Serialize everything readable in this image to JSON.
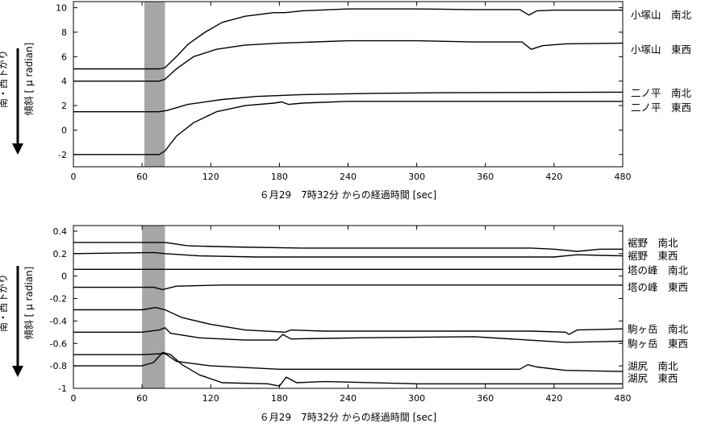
{
  "chart_data": [
    {
      "type": "line",
      "xlabel": "６月29　7時32分 からの経過時間 [sec]",
      "ylabel_direction": "南・西下がり",
      "ylabel": "傾斜 [ μ radian]",
      "xlim": [
        0,
        480
      ],
      "ylim": [
        -3,
        10.5
      ],
      "x_ticks": [
        0,
        60,
        120,
        180,
        240,
        300,
        360,
        420,
        480
      ],
      "y_ticks": [
        -2,
        0,
        2,
        4,
        6,
        8,
        10
      ],
      "shaded_span": [
        62,
        80
      ],
      "grid": false,
      "series": [
        {
          "name": "小塚山　南北",
          "points": [
            [
              0,
              5.0
            ],
            [
              75,
              5.0
            ],
            [
              80,
              5.1
            ],
            [
              90,
              6.0
            ],
            [
              100,
              7.0
            ],
            [
              115,
              8.0
            ],
            [
              130,
              8.8
            ],
            [
              150,
              9.3
            ],
            [
              175,
              9.6
            ],
            [
              185,
              9.6
            ],
            [
              200,
              9.75
            ],
            [
              240,
              9.9
            ],
            [
              300,
              9.9
            ],
            [
              350,
              9.85
            ],
            [
              390,
              9.85
            ],
            [
              398,
              9.4
            ],
            [
              405,
              9.75
            ],
            [
              420,
              9.8
            ],
            [
              480,
              9.8
            ]
          ]
        },
        {
          "name": "小塚山　東西",
          "points": [
            [
              0,
              4.0
            ],
            [
              75,
              4.0
            ],
            [
              80,
              4.15
            ],
            [
              90,
              5.0
            ],
            [
              105,
              6.0
            ],
            [
              125,
              6.6
            ],
            [
              150,
              6.95
            ],
            [
              180,
              7.1
            ],
            [
              240,
              7.3
            ],
            [
              300,
              7.3
            ],
            [
              350,
              7.2
            ],
            [
              392,
              7.2
            ],
            [
              400,
              6.6
            ],
            [
              410,
              6.9
            ],
            [
              430,
              7.05
            ],
            [
              480,
              7.1
            ]
          ]
        },
        {
          "name": "二ノ平　南北",
          "points": [
            [
              0,
              1.5
            ],
            [
              60,
              1.5
            ],
            [
              75,
              1.5
            ],
            [
              82,
              1.6
            ],
            [
              100,
              2.1
            ],
            [
              130,
              2.5
            ],
            [
              160,
              2.75
            ],
            [
              200,
              2.9
            ],
            [
              260,
              3.0
            ],
            [
              320,
              3.05
            ],
            [
              480,
              3.1
            ]
          ]
        },
        {
          "name": "二ノ平　東西",
          "points": [
            [
              0,
              -2.0
            ],
            [
              75,
              -2.0
            ],
            [
              80,
              -1.7
            ],
            [
              90,
              -0.5
            ],
            [
              105,
              0.6
            ],
            [
              125,
              1.5
            ],
            [
              150,
              2.0
            ],
            [
              175,
              2.2
            ],
            [
              182,
              2.3
            ],
            [
              188,
              2.1
            ],
            [
              200,
              2.2
            ],
            [
              240,
              2.35
            ],
            [
              320,
              2.35
            ],
            [
              480,
              2.35
            ]
          ]
        }
      ]
    },
    {
      "type": "line",
      "xlabel": "６月29　7時32分 からの経過時間 [sec]",
      "ylabel_direction": "南・西下がり",
      "ylabel": "傾斜 [ μ radian]",
      "xlim": [
        0,
        480
      ],
      "ylim": [
        -1,
        0.45
      ],
      "x_ticks": [
        0,
        60,
        120,
        180,
        240,
        300,
        360,
        420,
        480
      ],
      "y_ticks": [
        0.4,
        0.2,
        0,
        -0.2,
        -0.4,
        -0.6,
        -0.8,
        -1
      ],
      "shaded_span": [
        60,
        80
      ],
      "grid": false,
      "series": [
        {
          "name": "裾野　南北",
          "points": [
            [
              0,
              0.3
            ],
            [
              70,
              0.3
            ],
            [
              80,
              0.3
            ],
            [
              100,
              0.27
            ],
            [
              140,
              0.26
            ],
            [
              200,
              0.25
            ],
            [
              300,
              0.25
            ],
            [
              400,
              0.25
            ],
            [
              420,
              0.24
            ],
            [
              440,
              0.22
            ],
            [
              460,
              0.24
            ],
            [
              480,
              0.24
            ]
          ]
        },
        {
          "name": "裾野　東西",
          "points": [
            [
              0,
              0.2
            ],
            [
              70,
              0.21
            ],
            [
              80,
              0.2
            ],
            [
              110,
              0.18
            ],
            [
              160,
              0.17
            ],
            [
              300,
              0.17
            ],
            [
              420,
              0.17
            ],
            [
              440,
              0.19
            ],
            [
              480,
              0.18
            ]
          ]
        },
        {
          "name": "塔の峰　南北",
          "points": [
            [
              0,
              0.06
            ],
            [
              80,
              0.06
            ],
            [
              160,
              0.06
            ],
            [
              300,
              0.06
            ],
            [
              480,
              0.06
            ]
          ]
        },
        {
          "name": "塔の峰　東西",
          "points": [
            [
              0,
              -0.1
            ],
            [
              70,
              -0.1
            ],
            [
              78,
              -0.12
            ],
            [
              90,
              -0.09
            ],
            [
              130,
              -0.08
            ],
            [
              200,
              -0.08
            ],
            [
              300,
              -0.08
            ],
            [
              480,
              -0.08
            ]
          ]
        },
        {
          "name": "駒ヶ岳　南北",
          "points": [
            [
              0,
              -0.3
            ],
            [
              60,
              -0.3
            ],
            [
              72,
              -0.28
            ],
            [
              80,
              -0.3
            ],
            [
              95,
              -0.37
            ],
            [
              120,
              -0.43
            ],
            [
              150,
              -0.48
            ],
            [
              185,
              -0.5
            ],
            [
              190,
              -0.48
            ],
            [
              220,
              -0.49
            ],
            [
              300,
              -0.49
            ],
            [
              400,
              -0.49
            ],
            [
              430,
              -0.5
            ],
            [
              433,
              -0.52
            ],
            [
              440,
              -0.48
            ],
            [
              480,
              -0.47
            ]
          ]
        },
        {
          "name": "駒ヶ岳　東西",
          "points": [
            [
              0,
              -0.5
            ],
            [
              60,
              -0.5
            ],
            [
              75,
              -0.48
            ],
            [
              80,
              -0.46
            ],
            [
              85,
              -0.51
            ],
            [
              110,
              -0.55
            ],
            [
              150,
              -0.57
            ],
            [
              178,
              -0.57
            ],
            [
              183,
              -0.52
            ],
            [
              190,
              -0.56
            ],
            [
              250,
              -0.55
            ],
            [
              350,
              -0.54
            ],
            [
              430,
              -0.59
            ],
            [
              480,
              -0.58
            ]
          ]
        },
        {
          "name": "湖尻　南北",
          "points": [
            [
              0,
              -0.7
            ],
            [
              60,
              -0.7
            ],
            [
              80,
              -0.69
            ],
            [
              90,
              -0.76
            ],
            [
              120,
              -0.8
            ],
            [
              180,
              -0.83
            ],
            [
              300,
              -0.83
            ],
            [
              390,
              -0.83
            ],
            [
              397,
              -0.79
            ],
            [
              405,
              -0.81
            ],
            [
              430,
              -0.84
            ],
            [
              480,
              -0.85
            ]
          ]
        },
        {
          "name": "湖尻　東西",
          "points": [
            [
              0,
              -0.8
            ],
            [
              60,
              -0.8
            ],
            [
              70,
              -0.77
            ],
            [
              78,
              -0.68
            ],
            [
              85,
              -0.7
            ],
            [
              95,
              -0.79
            ],
            [
              110,
              -0.88
            ],
            [
              130,
              -0.95
            ],
            [
              170,
              -0.96
            ],
            [
              180,
              -0.98
            ],
            [
              186,
              -0.9
            ],
            [
              195,
              -0.95
            ],
            [
              220,
              -0.94
            ],
            [
              300,
              -0.96
            ],
            [
              400,
              -0.96
            ],
            [
              480,
              -0.96
            ]
          ]
        }
      ]
    }
  ]
}
